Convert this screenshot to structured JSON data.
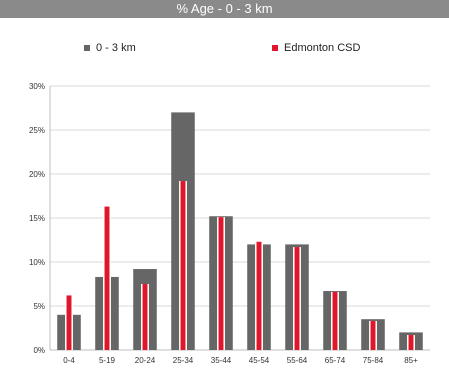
{
  "chart_data": {
    "type": "bar",
    "title": "% Age - 0 - 3 km",
    "xlabel": "",
    "ylabel": "",
    "ylim": [
      0,
      30
    ],
    "yticks": [
      0,
      5,
      10,
      15,
      20,
      25,
      30
    ],
    "yticks_labels": [
      "0%",
      "5%",
      "10%",
      "15%",
      "20%",
      "25%",
      "30%"
    ],
    "categories": [
      "0-4",
      "5-19",
      "20-24",
      "25-34",
      "35-44",
      "45-54",
      "55-64",
      "65-74",
      "75-84",
      "85+"
    ],
    "series": [
      {
        "name": "0 - 3 km",
        "color": "#666666",
        "values": [
          4.0,
          8.3,
          9.2,
          27.0,
          15.2,
          12.0,
          12.0,
          6.7,
          3.5,
          2.0
        ]
      },
      {
        "name": "Edmonton CSD",
        "color": "#e0162b",
        "values": [
          6.2,
          16.3,
          7.5,
          19.2,
          15.1,
          12.3,
          11.7,
          6.6,
          3.3,
          1.7
        ]
      }
    ],
    "grid": true,
    "legend_position": "top"
  }
}
